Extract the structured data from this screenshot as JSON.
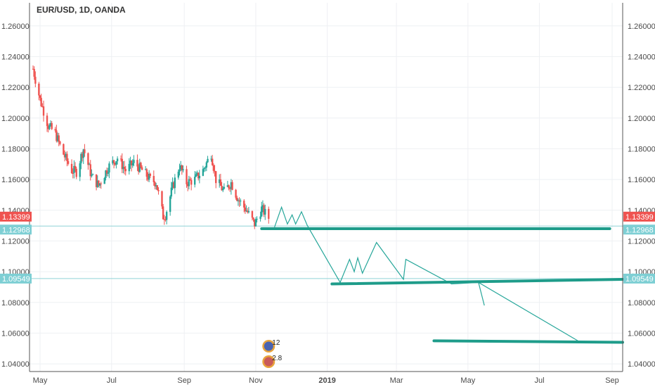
{
  "header": {
    "symbol_title": "EUR/USD, 1D, OANDA"
  },
  "colors": {
    "up": "#26a69a",
    "down": "#ef5350",
    "projection": "#26a69a",
    "support": "#1e9c8a",
    "hline": "#8fd3d6",
    "price_badge": "#ef5350",
    "level_badge": "#7ecfd4",
    "grid": "#eef0f3",
    "axis": "#4a4a4a"
  },
  "chart_data": {
    "type": "candlestick",
    "title": "EUR/USD, 1D, OANDA",
    "ylim": [
      1.035,
      1.275
    ],
    "y_ticks": [
      "1.26000",
      "1.24000",
      "1.22000",
      "1.20000",
      "1.18000",
      "1.16000",
      "1.14000",
      "1.12000",
      "1.10000",
      "1.08000",
      "1.06000",
      "1.04000"
    ],
    "x_ticks": [
      "May",
      "Jul",
      "Sep",
      "Nov",
      "2019",
      "Mar",
      "May",
      "Jul",
      "Sep"
    ],
    "x_range": [
      "2018-04-22",
      "2019-09-10"
    ],
    "grid": true,
    "price_path": [
      [
        "2018-04-25",
        1.232
      ],
      [
        "2018-05-01",
        1.212
      ],
      [
        "2018-05-08",
        1.195
      ],
      [
        "2018-05-14",
        1.19
      ],
      [
        "2018-05-20",
        1.178
      ],
      [
        "2018-05-28",
        1.166
      ],
      [
        "2018-06-01",
        1.165
      ],
      [
        "2018-06-07",
        1.18
      ],
      [
        "2018-06-14",
        1.162
      ],
      [
        "2018-06-20",
        1.156
      ],
      [
        "2018-06-28",
        1.168
      ],
      [
        "2018-07-06",
        1.174
      ],
      [
        "2018-07-13",
        1.166
      ],
      [
        "2018-07-20",
        1.171
      ],
      [
        "2018-07-27",
        1.166
      ],
      [
        "2018-08-03",
        1.16
      ],
      [
        "2018-08-08",
        1.158
      ],
      [
        "2018-08-14",
        1.136
      ],
      [
        "2018-08-16",
        1.137
      ],
      [
        "2018-08-22",
        1.155
      ],
      [
        "2018-08-28",
        1.169
      ],
      [
        "2018-09-03",
        1.158
      ],
      [
        "2018-09-10",
        1.16
      ],
      [
        "2018-09-17",
        1.166
      ],
      [
        "2018-09-24",
        1.177
      ],
      [
        "2018-09-28",
        1.16
      ],
      [
        "2018-10-05",
        1.152
      ],
      [
        "2018-10-11",
        1.158
      ],
      [
        "2018-10-17",
        1.147
      ],
      [
        "2018-10-24",
        1.14
      ],
      [
        "2018-10-31",
        1.131
      ],
      [
        "2018-11-06",
        1.141
      ],
      [
        "2018-11-12",
        1.135
      ]
    ],
    "last_price": "1.13399",
    "levels": [
      "1.12968",
      "1.09549"
    ],
    "projection_path": [
      [
        "2018-11-17",
        1.129
      ],
      [
        "2018-11-23",
        1.142
      ],
      [
        "2018-11-28",
        1.131
      ],
      [
        "2018-12-02",
        1.137
      ],
      [
        "2018-12-05",
        1.131
      ],
      [
        "2018-12-10",
        1.139
      ],
      [
        "2018-12-15",
        1.13
      ],
      [
        "2019-01-12",
        1.093
      ],
      [
        "2019-01-20",
        1.108
      ],
      [
        "2019-01-24",
        1.1
      ],
      [
        "2019-01-27",
        1.109
      ],
      [
        "2019-01-31",
        1.099
      ],
      [
        "2019-02-12",
        1.119
      ],
      [
        "2019-03-07",
        1.095
      ],
      [
        "2019-03-09",
        1.108
      ],
      [
        "2019-04-17",
        1.092
      ],
      [
        "2019-05-10",
        1.093
      ],
      [
        "2019-05-15",
        1.078
      ],
      [
        "2019-05-10",
        1.093
      ],
      [
        "2019-08-05",
        1.054
      ]
    ],
    "support_lines": [
      [
        [
          "2018-11-06",
          1.128
        ],
        [
          "2019-08-30",
          1.128
        ]
      ],
      [
        [
          "2019-01-05",
          1.092
        ],
        [
          "2019-09-10",
          1.095
        ]
      ],
      [
        [
          "2019-04-02",
          1.055
        ],
        [
          "2019-09-10",
          1.054
        ]
      ]
    ],
    "events": [
      {
        "date": "2018-11-12",
        "value": "12"
      },
      {
        "date": "2018-11-12",
        "value": "2.8"
      }
    ]
  }
}
